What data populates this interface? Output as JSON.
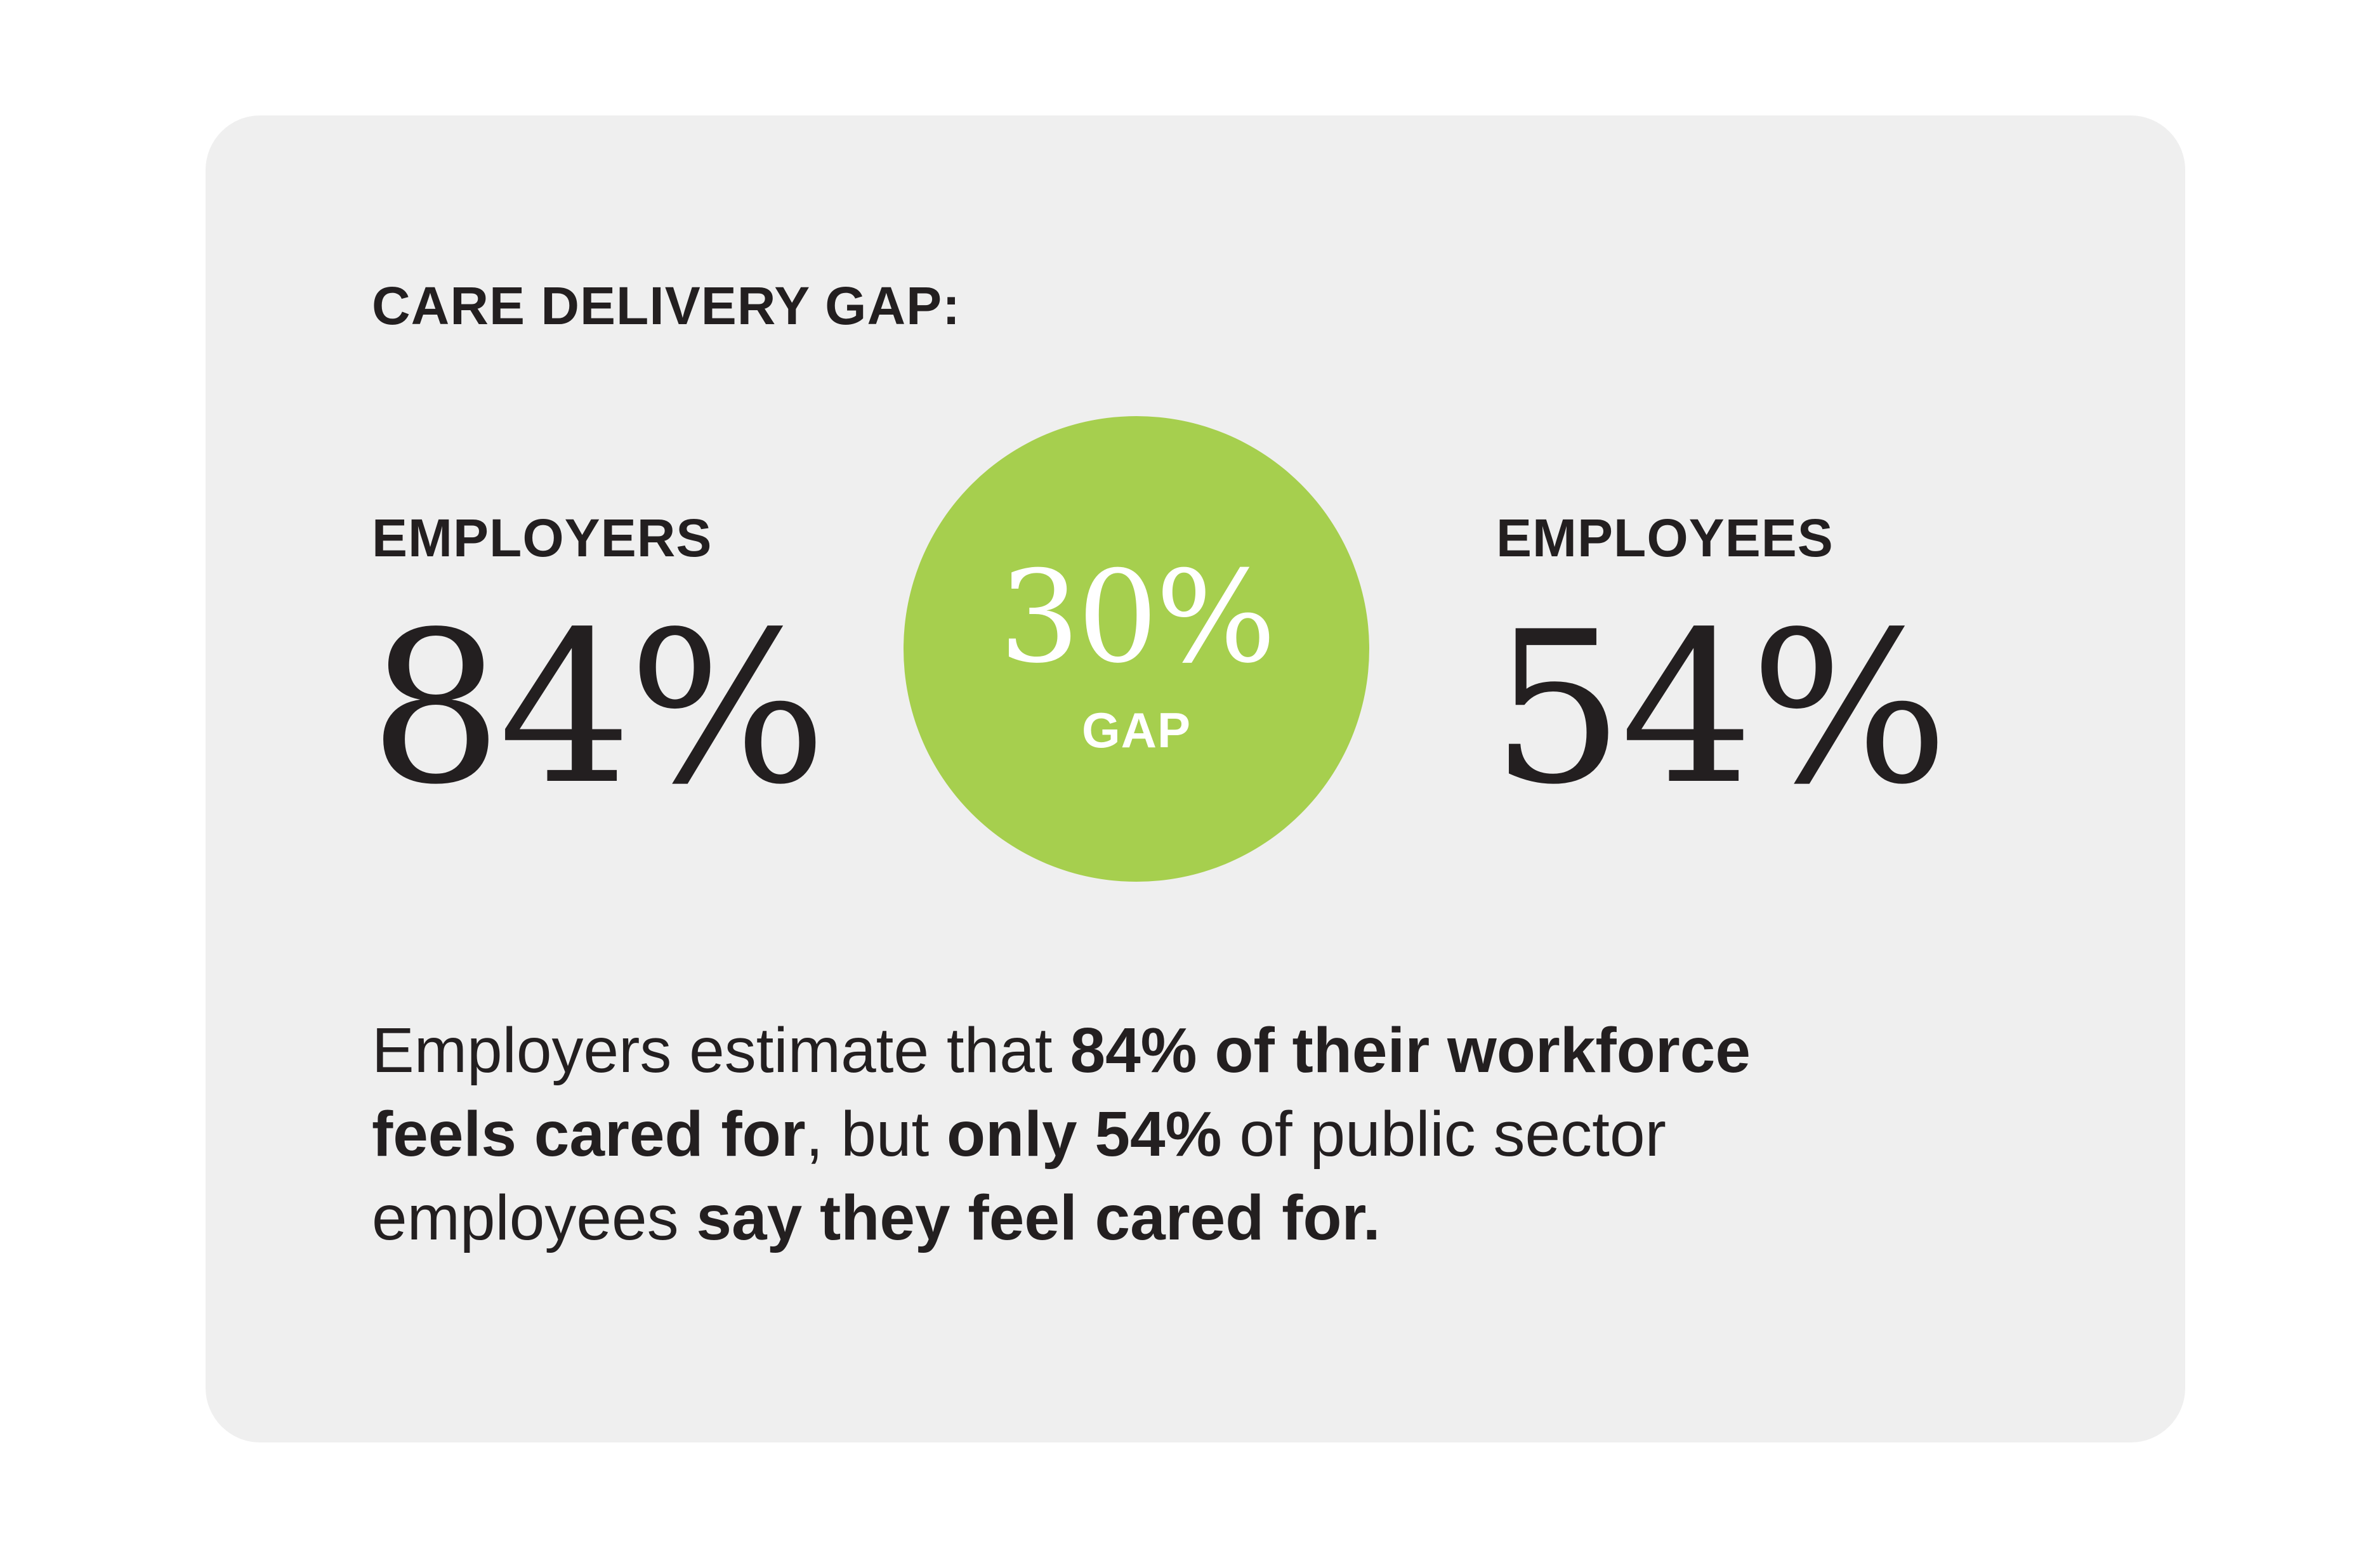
{
  "heading": "CARE DELIVERY GAP:",
  "employers": {
    "label": "EMPLOYERS",
    "value": "84%"
  },
  "gap": {
    "value": "30%",
    "label": "GAP"
  },
  "employees": {
    "label": "EMPLOYEES",
    "value": "54%"
  },
  "description": {
    "line1_a": "Employers estimate that ",
    "line1_b": "84% of their workforce",
    "line2_a": "feels cared for",
    "line2_b": ", but ",
    "line2_c": "only 54%",
    "line2_d": " of public sector",
    "line3_a": "employees ",
    "line3_b": "say they feel cared for."
  },
  "colors": {
    "card_background": "#efefef",
    "accent_green": "#a6cf4e",
    "text_dark": "#231f20"
  }
}
